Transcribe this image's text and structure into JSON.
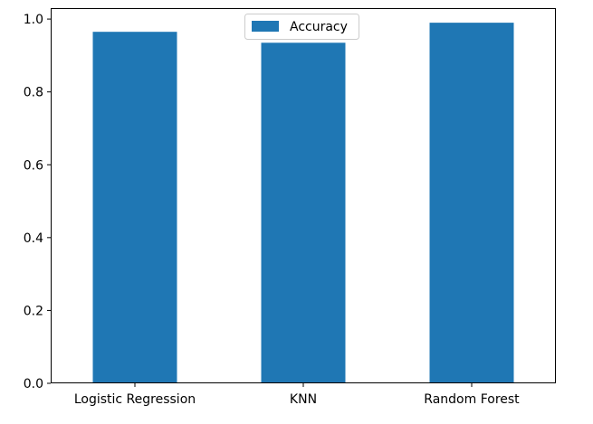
{
  "chart_data": {
    "type": "bar",
    "categories": [
      "Logistic Regression",
      "KNN",
      "Random Forest"
    ],
    "series": [
      {
        "name": "Accuracy",
        "values": [
          0.965,
          0.935,
          0.99
        ],
        "color": "#1f77b4"
      }
    ],
    "ylim": [
      0,
      1.03
    ],
    "yticks": [
      0.0,
      0.2,
      0.4,
      0.6,
      0.8,
      1.0
    ],
    "ytick_labels": [
      "0.0",
      "0.2",
      "0.4",
      "0.6",
      "0.8",
      "1.0"
    ],
    "legend": {
      "placement": "top-center",
      "entries": [
        "Accuracy"
      ]
    },
    "grid": false,
    "title": "",
    "xlabel": "",
    "ylabel": ""
  }
}
